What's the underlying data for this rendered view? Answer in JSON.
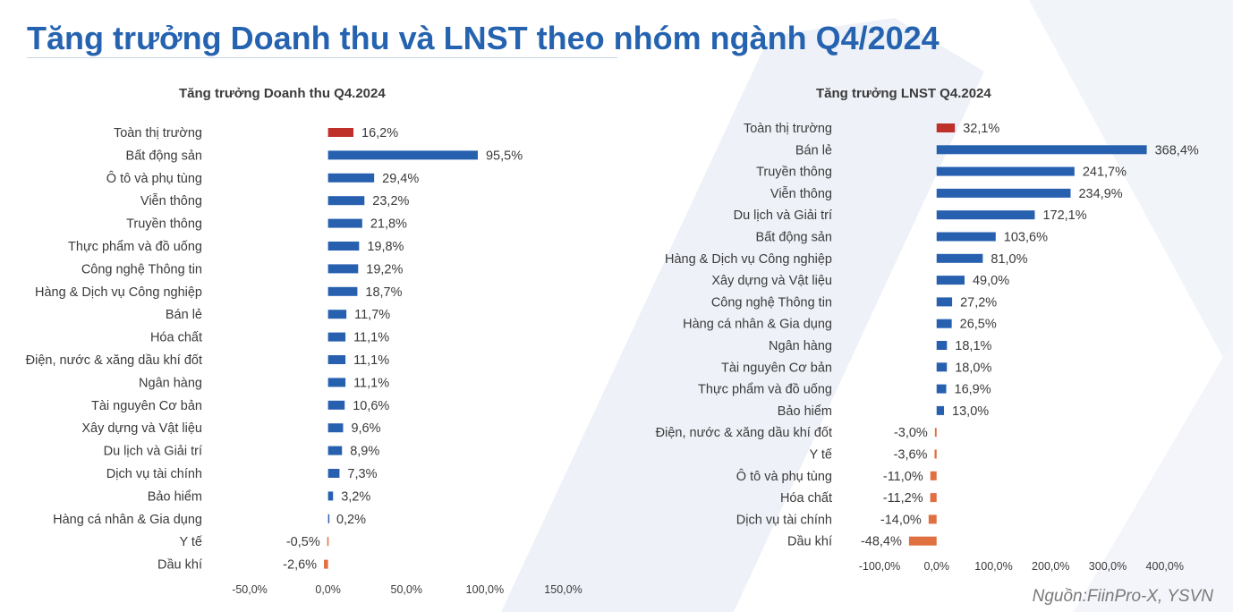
{
  "title": "Tăng trưởng Doanh thu và LNST theo nhóm ngành Q4/2024",
  "source": "Nguồn:FiinPro-X, YSVN",
  "colors": {
    "title": "#2563b0",
    "positive": "#2860b0",
    "negative": "#e07040",
    "market": "#c0302a"
  },
  "chart_data": [
    {
      "type": "bar",
      "orientation": "horizontal",
      "title": "Tăng trưởng Doanh thu Q4.2024",
      "categories": [
        "Toàn thị trường",
        "Bất động sản",
        "Ô tô và phụ tùng",
        "Viễn thông",
        "Truyền thông",
        "Thực phẩm và đồ uống",
        "Công nghệ Thông tin",
        "Hàng & Dịch vụ Công nghiệp",
        "Bán lẻ",
        "Hóa chất",
        "Điện, nước & xăng dầu khí đốt",
        "Ngân hàng",
        "Tài nguyên Cơ bản",
        "Xây dựng và Vật liệu",
        "Du lịch và Giải trí",
        "Dịch vụ tài chính",
        "Bảo hiểm",
        "Hàng cá nhân & Gia dụng",
        "Y tế",
        "Dầu khí"
      ],
      "values": [
        16.2,
        95.5,
        29.4,
        23.2,
        21.8,
        19.8,
        19.2,
        18.7,
        11.7,
        11.1,
        11.1,
        11.1,
        10.6,
        9.6,
        8.9,
        7.3,
        3.2,
        0.2,
        -0.5,
        -2.6
      ],
      "value_labels": [
        "16,2%",
        "95,5%",
        "29,4%",
        "23,2%",
        "21,8%",
        "19,8%",
        "19,2%",
        "18,7%",
        "11,7%",
        "11,1%",
        "11,1%",
        "11,1%",
        "10,6%",
        "9,6%",
        "8,9%",
        "7,3%",
        "3,2%",
        "0,2%",
        "-0,5%",
        "-2,6%"
      ],
      "highlight_index": 0,
      "xlim": [
        -50,
        150
      ],
      "xticks": [
        -50,
        0,
        50,
        100,
        150
      ],
      "xtick_labels": [
        "-50,0%",
        "0,0%",
        "50,0%",
        "100,0%",
        "150,0%"
      ],
      "grid": false
    },
    {
      "type": "bar",
      "orientation": "horizontal",
      "title": "Tăng trưởng LNST Q4.2024",
      "categories": [
        "Toàn thị trường",
        "Bán lẻ",
        "Truyền thông",
        "Viễn thông",
        "Du lịch và Giải trí",
        "Bất động sản",
        "Hàng & Dịch vụ Công nghiệp",
        "Xây dựng và Vật liệu",
        "Công nghệ Thông tin",
        "Hàng cá nhân & Gia dụng",
        "Ngân hàng",
        "Tài nguyên Cơ bản",
        "Thực phẩm và đồ uống",
        "Bảo hiểm",
        "Điện, nước & xăng dầu khí đốt",
        "Y tế",
        "Ô tô và phụ tùng",
        "Hóa chất",
        "Dịch vụ tài chính",
        "Dầu khí"
      ],
      "values": [
        32.1,
        368.4,
        241.7,
        234.9,
        172.1,
        103.6,
        81.0,
        49.0,
        27.2,
        26.5,
        18.1,
        18.0,
        16.9,
        13.0,
        -3.0,
        -3.6,
        -11.0,
        -11.2,
        -14.0,
        -48.4
      ],
      "value_labels": [
        "32,1%",
        "368,4%",
        "241,7%",
        "234,9%",
        "172,1%",
        "103,6%",
        "81,0%",
        "49,0%",
        "27,2%",
        "26,5%",
        "18,1%",
        "18,0%",
        "16,9%",
        "13,0%",
        "-3,0%",
        "-3,6%",
        "-11,0%",
        "-11,2%",
        "-14,0%",
        "-48,4%"
      ],
      "highlight_index": 0,
      "xlim": [
        -100,
        400
      ],
      "xticks": [
        -100,
        0,
        100,
        200,
        300,
        400
      ],
      "xtick_labels": [
        "-100,0%",
        "0,0%",
        "100,0%",
        "200,0%",
        "300,0%",
        "400,0%"
      ],
      "grid": false
    }
  ]
}
